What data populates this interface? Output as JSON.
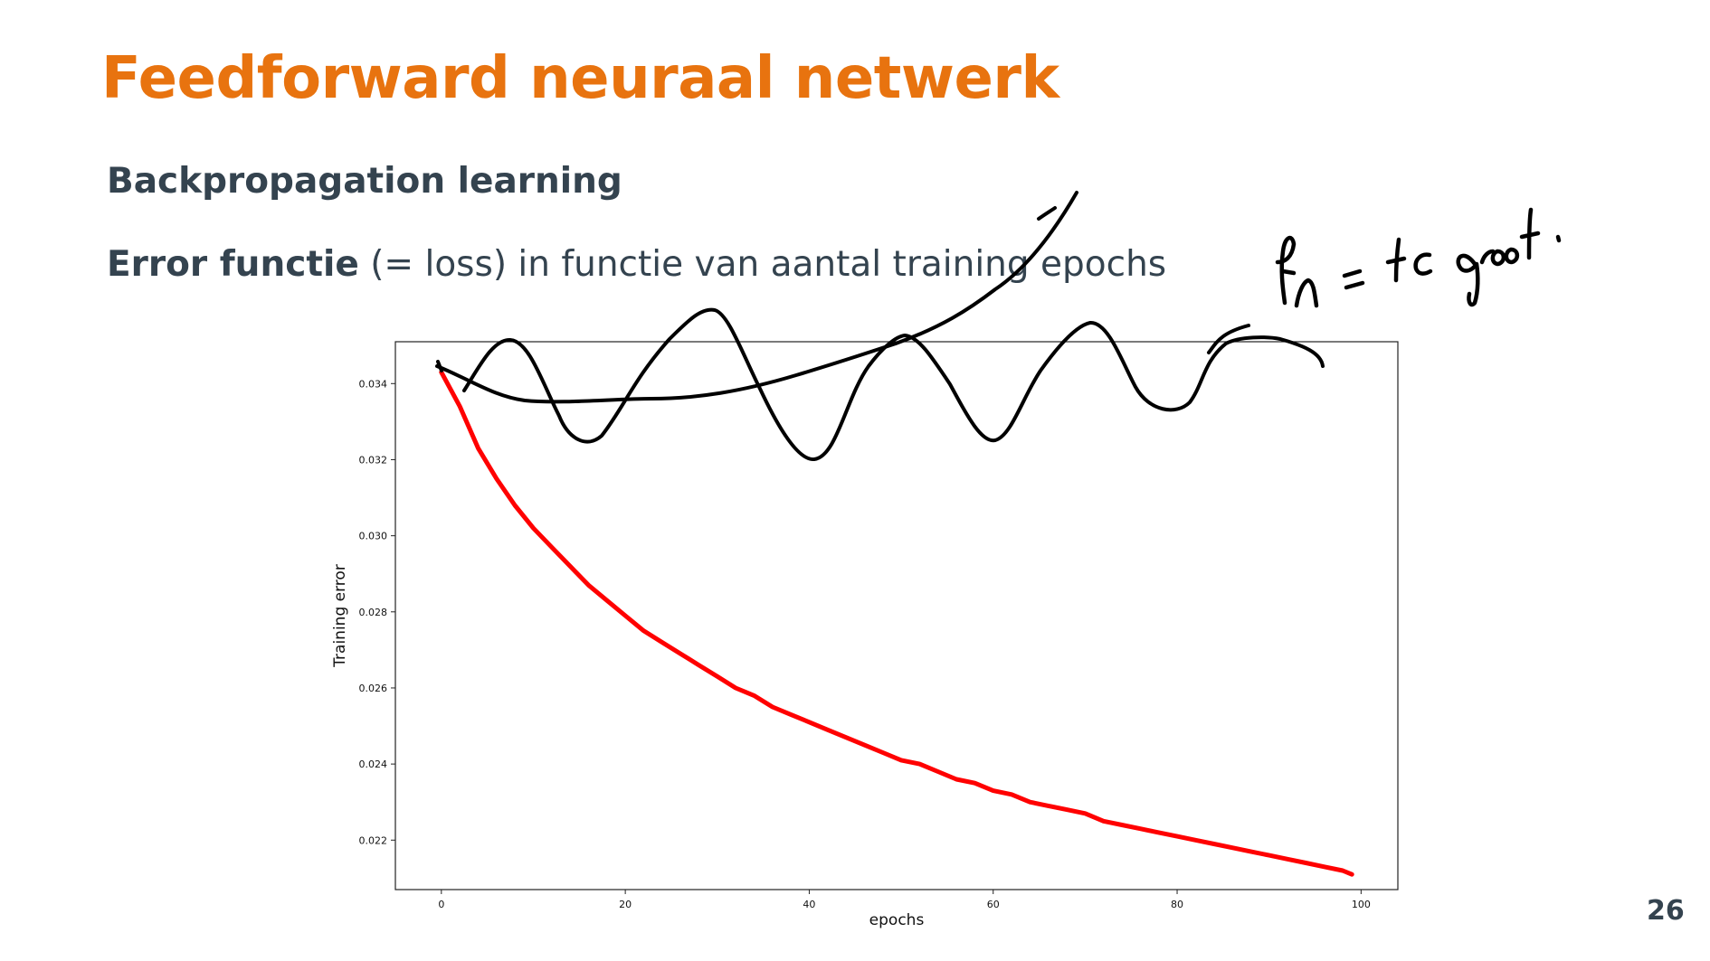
{
  "slide": {
    "title": "Feedforward neuraal netwerk",
    "subtitle": "Backpropagation learning",
    "body_strong": "Error functie",
    "body_rest": " (= loss) in functie van aantal training epochs",
    "page_number": "26",
    "title_color": "#e8730f",
    "text_color": "#34434f"
  },
  "chart_data": {
    "type": "line",
    "xlabel": "epochs",
    "ylabel": "Training error",
    "xlim": [
      -5,
      104
    ],
    "ylim": [
      0.0207,
      0.0351
    ],
    "x_ticks": [
      0,
      20,
      40,
      60,
      80,
      100
    ],
    "y_ticks": [
      0.022,
      0.024,
      0.026,
      0.028,
      0.03,
      0.032,
      0.034
    ],
    "x_tick_labels": [
      "0",
      "20",
      "40",
      "60",
      "80",
      "100"
    ],
    "y_tick_labels": [
      "0.022",
      "0.024",
      "0.026",
      "0.028",
      "0.030",
      "0.032",
      "0.034"
    ],
    "grid": false,
    "series": [
      {
        "color": "#ff0000",
        "x": [
          0,
          2,
          4,
          6,
          8,
          10,
          12,
          14,
          16,
          18,
          20,
          22,
          24,
          26,
          28,
          30,
          32,
          34,
          36,
          38,
          40,
          42,
          44,
          46,
          48,
          50,
          52,
          54,
          56,
          58,
          60,
          62,
          64,
          66,
          68,
          70,
          72,
          74,
          76,
          78,
          80,
          82,
          84,
          86,
          88,
          90,
          92,
          94,
          96,
          98,
          99
        ],
        "y": [
          0.0343,
          0.0334,
          0.0323,
          0.0315,
          0.0308,
          0.0302,
          0.0297,
          0.0292,
          0.0287,
          0.0283,
          0.0279,
          0.0275,
          0.0272,
          0.0269,
          0.0266,
          0.0263,
          0.026,
          0.0258,
          0.0255,
          0.0253,
          0.0251,
          0.0249,
          0.0247,
          0.0245,
          0.0243,
          0.0241,
          0.024,
          0.0238,
          0.0236,
          0.0235,
          0.0233,
          0.0232,
          0.023,
          0.0229,
          0.0228,
          0.0227,
          0.0225,
          0.0224,
          0.0223,
          0.0222,
          0.0221,
          0.022,
          0.0219,
          0.0218,
          0.0217,
          0.0216,
          0.0215,
          0.0214,
          0.0213,
          0.0212,
          0.0211
        ]
      }
    ]
  },
  "annotation": {
    "handwritten_text": "fn = te groot.",
    "ink_color": "#000000"
  }
}
